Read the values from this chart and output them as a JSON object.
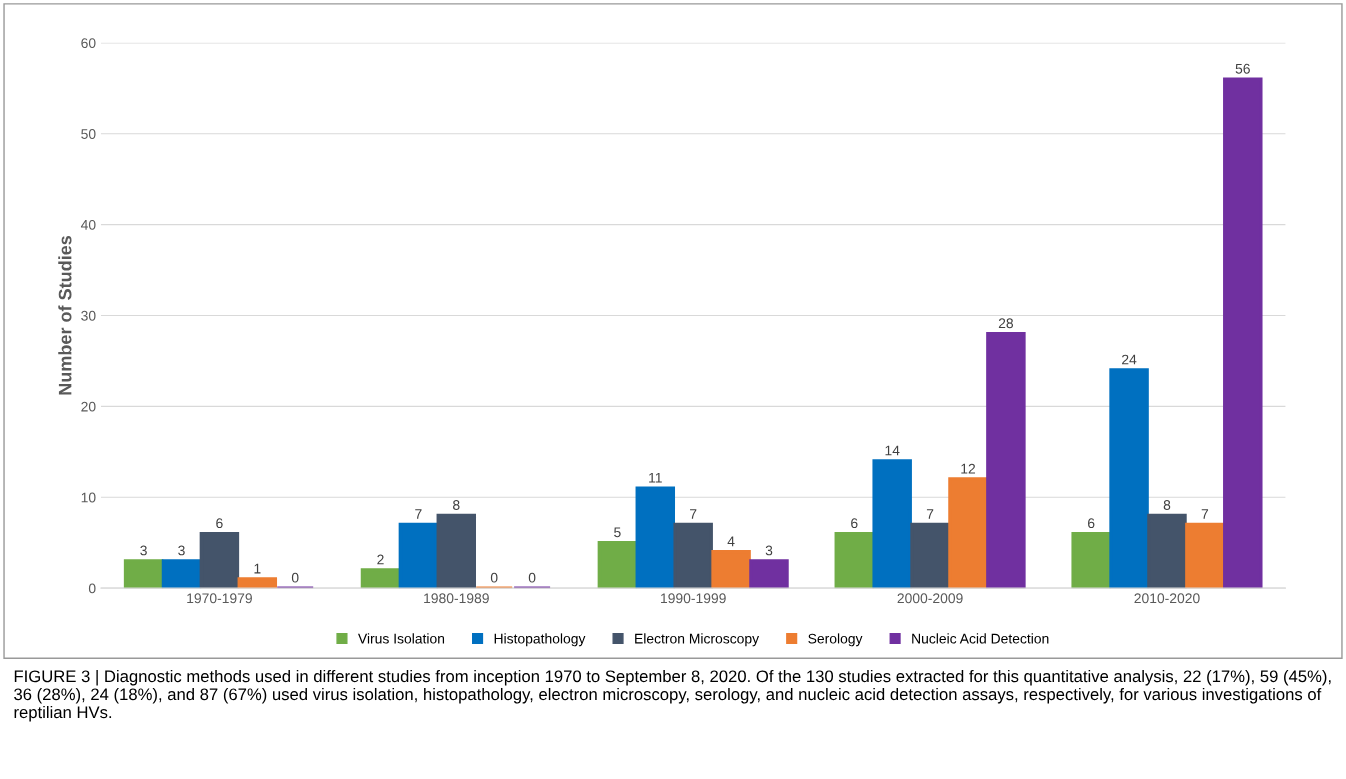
{
  "chart_data": {
    "type": "bar",
    "ylabel": "Number of Studies",
    "categories": [
      "1970-1979",
      "1980-1989",
      "1990-1999",
      "2000-2009",
      "2010-2020"
    ],
    "series": [
      {
        "name": "Virus Isolation",
        "color": "#70ad47",
        "values": [
          3,
          2,
          5,
          6,
          6
        ]
      },
      {
        "name": "Histopathology",
        "color": "#0070c0",
        "values": [
          3,
          7,
          11,
          14,
          24
        ]
      },
      {
        "name": "Electron Microscopy",
        "color": "#44546a",
        "values": [
          6,
          8,
          7,
          7,
          8
        ]
      },
      {
        "name": "Serology",
        "color": "#ed7d31",
        "values": [
          1,
          0,
          4,
          12,
          7
        ]
      },
      {
        "name": "Nucleic Acid Detection",
        "color": "#7030a0",
        "values": [
          0,
          0,
          3,
          28,
          56
        ]
      }
    ],
    "ylim": [
      0,
      60
    ],
    "yticks": [
      0,
      10,
      20,
      30,
      40,
      50,
      60
    ],
    "grid": "y",
    "legend": "bottom",
    "data_labels": true,
    "annotations": [
      "FIGURE 3 | Diagnostic methods used in different studies from inception 1970 to September 8, 2020. Of the 130 studies extracted for this quantitative analysis, 22 (17%), 59 (45%), 36 (28%), 24 (18%), and 87 (67%) used virus isolation, histopathology, electron microscopy, serology, and nucleic acid detection assays, respectively, for various investigations of reptilian HVs."
    ]
  }
}
